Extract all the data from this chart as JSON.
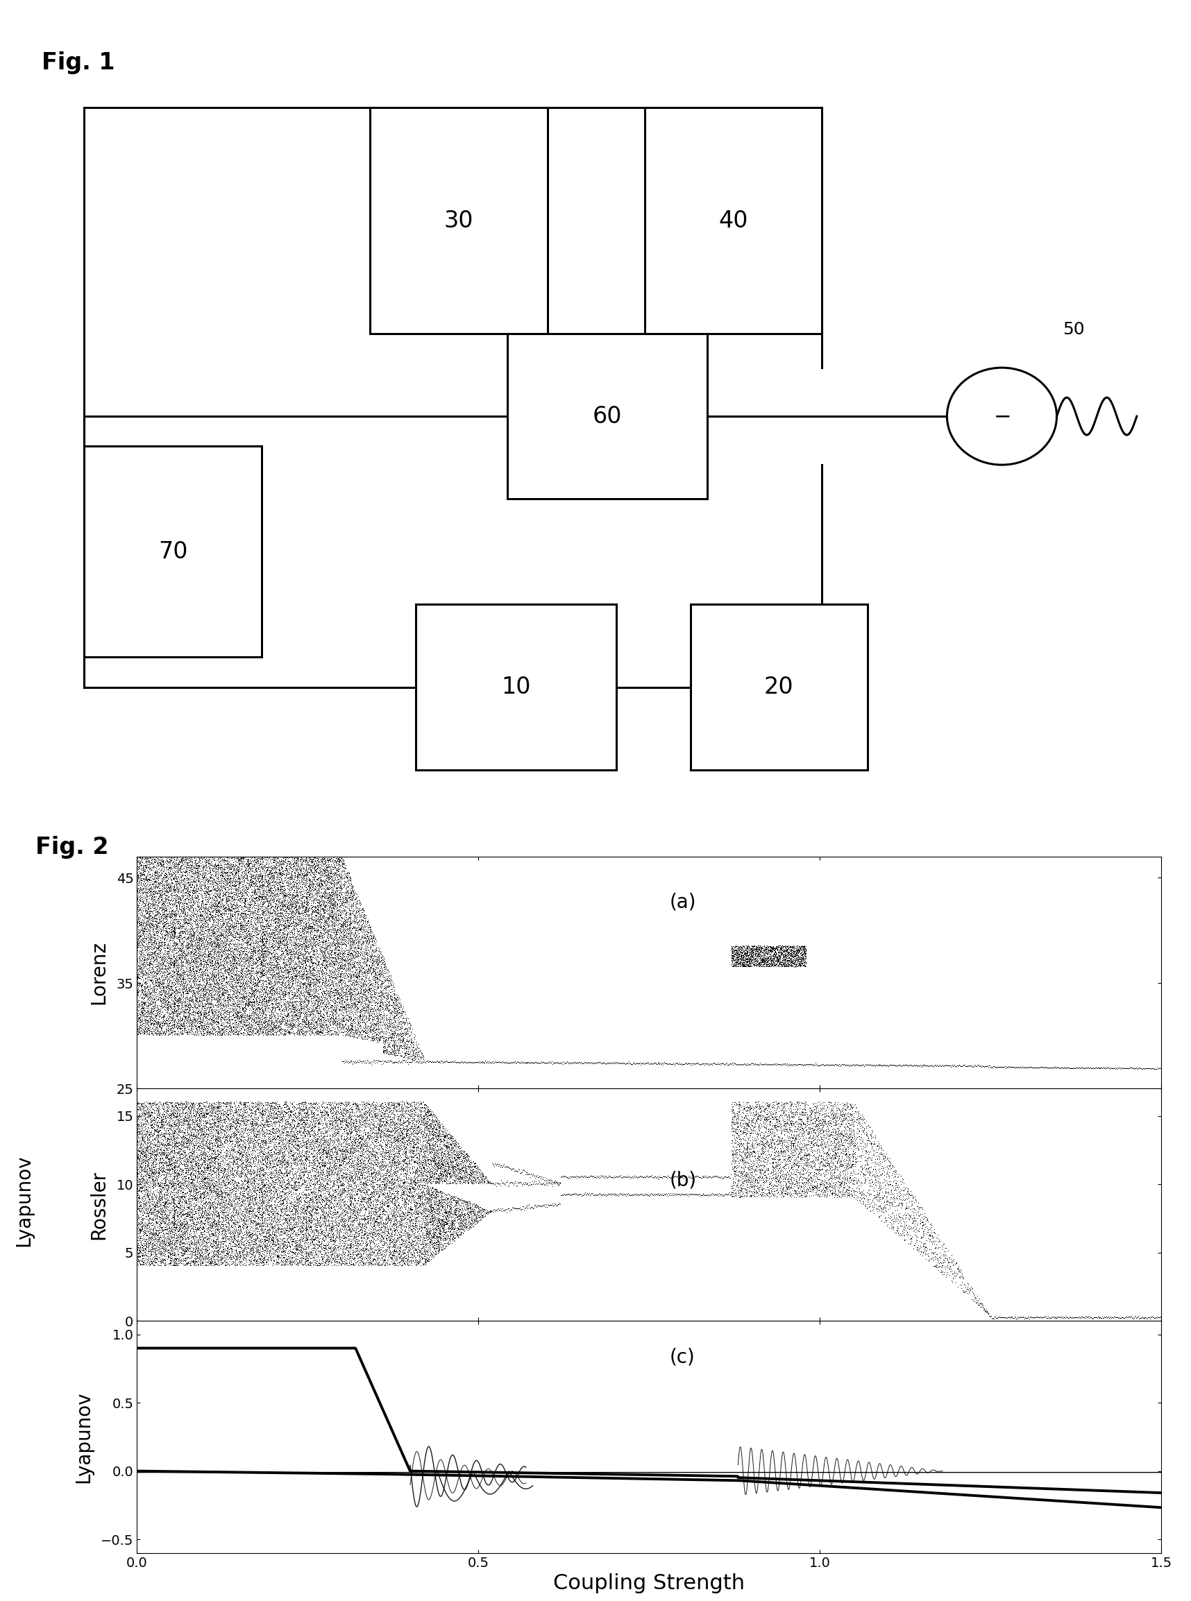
{
  "fig1_label": "Fig. 1",
  "fig2_label": "Fig. 2",
  "background": "#ffffff",
  "subplot_a_ylim": [
    25,
    47
  ],
  "subplot_a_yticks": [
    25,
    35,
    45
  ],
  "subplot_b_ylim": [
    0,
    17
  ],
  "subplot_b_yticks": [
    0,
    5,
    10,
    15
  ],
  "subplot_c_ylim": [
    -0.6,
    1.1
  ],
  "subplot_c_yticks": [
    -0.5,
    0.0,
    0.5,
    1.0
  ],
  "xlim": [
    0.0,
    1.5
  ],
  "xticks": [
    0.0,
    0.5,
    1.0,
    1.5
  ],
  "xlabel": "Coupling Strength",
  "ylabel_lorenz": "Lorenz",
  "ylabel_rossler": "Rossler",
  "ylabel_lyapunov": "Lyapunov",
  "label_a": "(a)",
  "label_b": "(b)",
  "label_c": "(c)"
}
